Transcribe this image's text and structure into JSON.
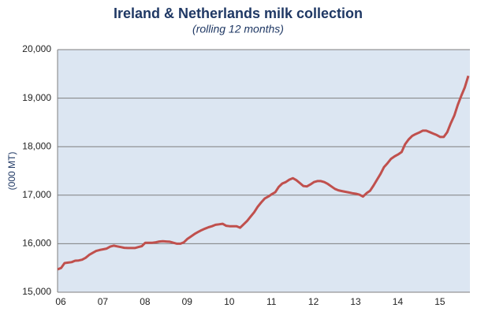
{
  "chart_data": {
    "type": "line",
    "title": "Ireland & Netherlands milk collection",
    "subtitle": "(rolling 12 months)",
    "y_label": "(000 MT)",
    "color": "#c0504d",
    "background": "#dce6f2",
    "grid": true,
    "ylim": [
      15000,
      20000
    ],
    "yticks": [
      {
        "value": 15000,
        "label": "15,000"
      },
      {
        "value": 16000,
        "label": "16,000"
      },
      {
        "value": 17000,
        "label": "17,000"
      },
      {
        "value": 18000,
        "label": "18,000"
      },
      {
        "value": 19000,
        "label": "19,000"
      },
      {
        "value": 20000,
        "label": "20,000"
      }
    ],
    "categories": [
      "06",
      null,
      null,
      null,
      null,
      null,
      null,
      null,
      null,
      null,
      null,
      null,
      "07",
      null,
      null,
      null,
      null,
      null,
      null,
      null,
      null,
      null,
      null,
      null,
      "08",
      null,
      null,
      null,
      null,
      null,
      null,
      null,
      null,
      null,
      null,
      null,
      "09",
      null,
      null,
      null,
      null,
      null,
      null,
      null,
      null,
      null,
      null,
      null,
      "10",
      null,
      null,
      null,
      null,
      null,
      null,
      null,
      null,
      null,
      null,
      null,
      "11",
      null,
      null,
      null,
      null,
      null,
      null,
      null,
      null,
      null,
      null,
      null,
      "12",
      null,
      null,
      null,
      null,
      null,
      null,
      null,
      null,
      null,
      null,
      null,
      "13",
      null,
      null,
      null,
      null,
      null,
      null,
      null,
      null,
      null,
      null,
      null,
      "14",
      null,
      null,
      null,
      null,
      null,
      null,
      null,
      null,
      null,
      null,
      null,
      "15",
      null,
      null,
      null,
      null,
      null,
      null,
      null,
      null,
      null
    ],
    "values": [
      15470,
      15500,
      15600,
      15610,
      15620,
      15650,
      15655,
      15670,
      15710,
      15770,
      15810,
      15850,
      15870,
      15885,
      15900,
      15940,
      15960,
      15945,
      15930,
      15915,
      15910,
      15910,
      15910,
      15930,
      15950,
      16020,
      16020,
      16020,
      16030,
      16045,
      16050,
      16045,
      16040,
      16020,
      16000,
      16000,
      16030,
      16100,
      16150,
      16200,
      16240,
      16280,
      16310,
      16340,
      16360,
      16390,
      16400,
      16410,
      16370,
      16360,
      16360,
      16360,
      16330,
      16400,
      16470,
      16560,
      16650,
      16760,
      16850,
      16930,
      16970,
      17020,
      17060,
      17170,
      17240,
      17270,
      17320,
      17350,
      17310,
      17250,
      17190,
      17180,
      17220,
      17270,
      17290,
      17290,
      17270,
      17230,
      17180,
      17130,
      17100,
      17085,
      17070,
      17055,
      17040,
      17030,
      17010,
      16970,
      17040,
      17090,
      17200,
      17320,
      17440,
      17580,
      17660,
      17750,
      17800,
      17840,
      17890,
      18050,
      18150,
      18220,
      18260,
      18290,
      18330,
      18330,
      18300,
      18270,
      18240,
      18200,
      18200,
      18300,
      18480,
      18640,
      18860,
      19050,
      19220,
      19460
    ]
  }
}
